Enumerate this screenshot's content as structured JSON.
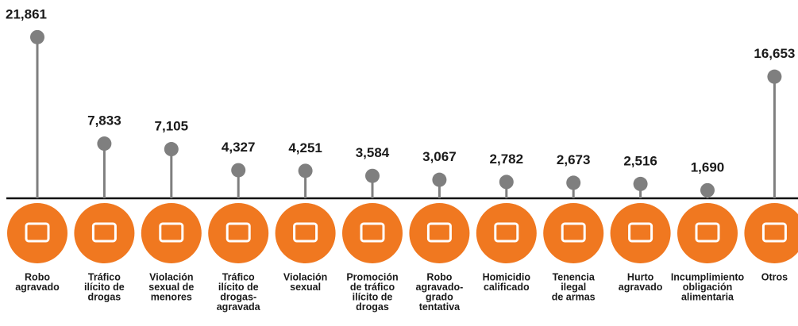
{
  "chart_data": {
    "type": "lollipop",
    "categories": [
      [
        "Robo",
        "agravado"
      ],
      [
        "Tráfico",
        "ilícito de",
        "drogas"
      ],
      [
        "Violación",
        "sexual de",
        "menores"
      ],
      [
        "Tráfico",
        "ilícito de",
        "drogas-",
        "agravada"
      ],
      [
        "Violación",
        "sexual"
      ],
      [
        "Promoción",
        "de tráfico",
        "ilícito de",
        "drogas"
      ],
      [
        "Robo",
        "agravado-",
        "grado",
        "tentativa"
      ],
      [
        "Homicidio",
        "calificado"
      ],
      [
        "Tenencia",
        "ilegal",
        "de armas"
      ],
      [
        "Hurto",
        "agravado"
      ],
      [
        "Incumplimiento",
        "obligación",
        "alimentaria"
      ],
      [
        "Otros"
      ]
    ],
    "values": [
      21861,
      7833,
      7105,
      4327,
      4251,
      3584,
      3067,
      2782,
      2673,
      2516,
      1690,
      16653
    ],
    "value_labels": [
      "21,861",
      "7,833",
      "7,105",
      "4,327",
      "4,251",
      "3,584",
      "3,067",
      "2,782",
      "2,673",
      "2,516",
      "1,690",
      "16,653"
    ],
    "ylim": [
      0,
      22000
    ],
    "color": "#7f7f7f",
    "icon_color": "#f07820"
  }
}
